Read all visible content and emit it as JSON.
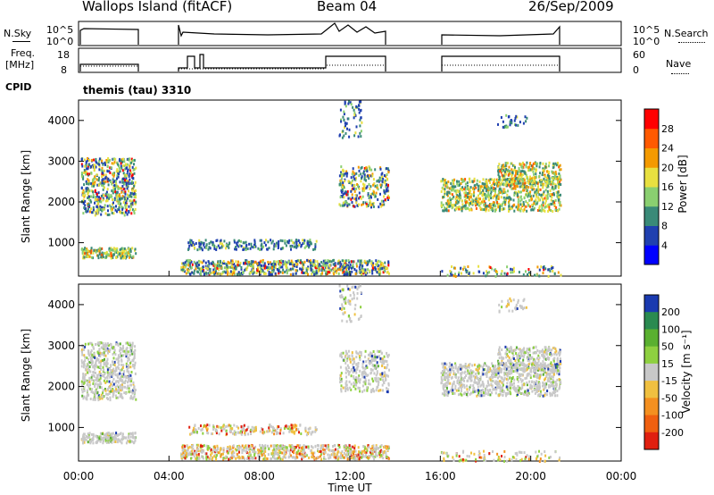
{
  "header": {
    "station": "Wallops Island (fitACF)",
    "beam": "Beam 04",
    "date": "26/Sep/2009",
    "cpid_label": "CPID",
    "cpid_value": "themis (tau) 3310"
  },
  "strips": {
    "nsky_label": "N.Sky",
    "nsky_ticks": [
      "10^5",
      "10^0"
    ],
    "nsearch_label": "N.Search",
    "nsearch_ticks": [
      "10^5",
      "10^0"
    ],
    "freq_label_1": "Freq.",
    "freq_label_2": "[MHz]",
    "freq_ticks": [
      "18",
      "8"
    ],
    "nave_label": "Nave",
    "nave_ticks": [
      "60",
      "0"
    ]
  },
  "chart_data": [
    {
      "type": "heatmap",
      "title": "",
      "xlabel": "",
      "ylabel": "Slant Range [km]",
      "y_ticks": [
        "1000",
        "2000",
        "3000",
        "4000"
      ],
      "ylim": [
        180,
        4500
      ],
      "xlim": [
        "00:00",
        "24:00"
      ],
      "colorbar_label": "Power [dB]",
      "colorbar_ticks": [
        "4",
        "8",
        "12",
        "16",
        "20",
        "24",
        "28"
      ],
      "colors": [
        "#0000ff",
        "#2040b0",
        "#3a8a78",
        "#8acf70",
        "#e8e040",
        "#f49a00",
        "#ff5a00",
        "#ff0000"
      ]
    },
    {
      "type": "heatmap",
      "title": "",
      "xlabel": "Time UT",
      "ylabel": "Slant Range [km]",
      "y_ticks": [
        "1000",
        "2000",
        "3000",
        "4000"
      ],
      "x_ticks": [
        "00:00",
        "04:00",
        "08:00",
        "12:00",
        "16:00",
        "20:00",
        "00:00"
      ],
      "ylim": [
        180,
        4500
      ],
      "colorbar_label": "Velocity [m s⁻¹]",
      "colorbar_ticks": [
        "200",
        "100",
        "50",
        "15",
        "-15",
        "-50",
        "-100",
        "-200"
      ],
      "colors": [
        "#1a3ab0",
        "#2a8a50",
        "#5ab030",
        "#8ed040",
        "#c8c8c8",
        "#f0c040",
        "#f49020",
        "#f06010",
        "#e02010"
      ]
    }
  ],
  "x_axis_title": "Time UT"
}
